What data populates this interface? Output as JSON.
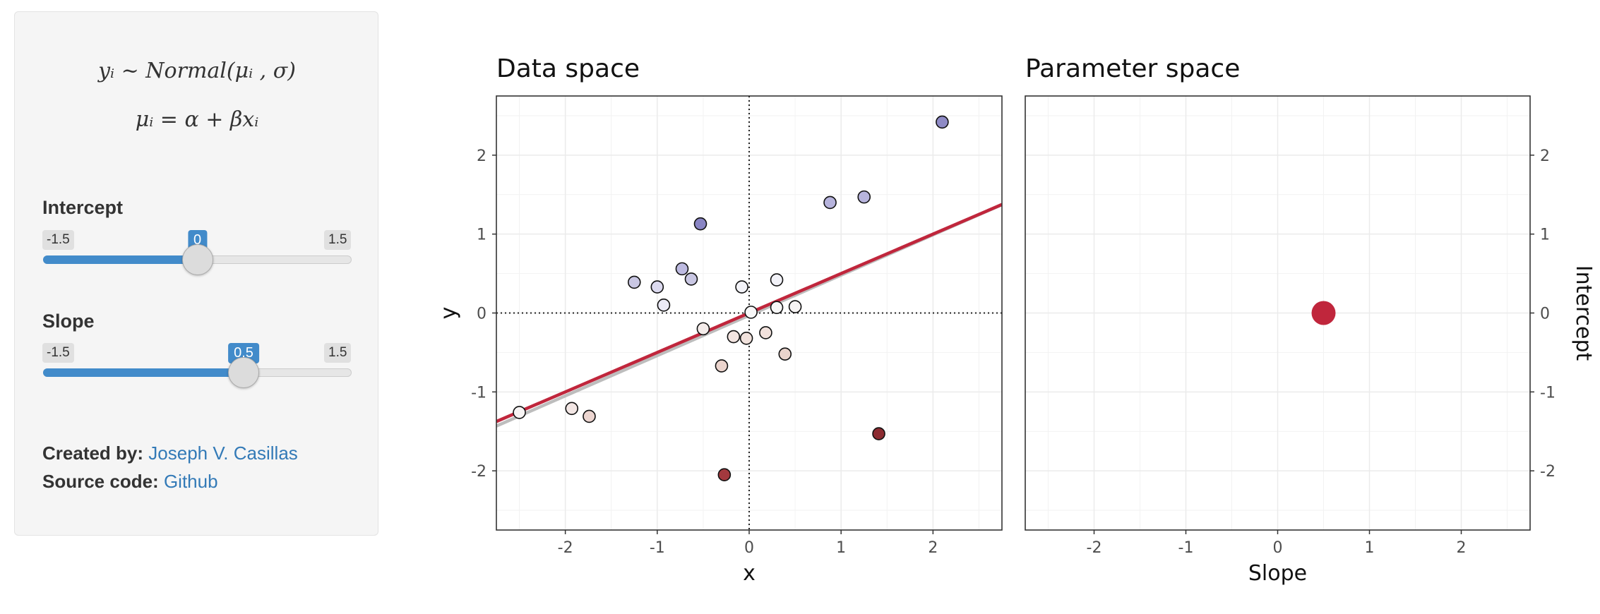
{
  "sidebar": {
    "formula_line1": "yᵢ ~ Normal(μᵢ , σ)",
    "formula_line2": "μᵢ = α + βxᵢ",
    "intercept": {
      "label": "Intercept",
      "min": "-1.5",
      "max": "1.5",
      "value": "0",
      "min_value": -1.5,
      "max_value": 1.5,
      "current": 0
    },
    "slope": {
      "label": "Slope",
      "min": "-1.5",
      "max": "1.5",
      "value": "0.5",
      "min_value": -1.5,
      "max_value": 1.5,
      "current": 0.5
    },
    "created_by_label": "Created by:",
    "created_by_link": "Joseph V. Casillas",
    "source_code_label": "Source code:",
    "source_code_link": "Github"
  },
  "chart_data": [
    {
      "type": "scatter",
      "title": "Data space",
      "xlabel": "x",
      "ylabel": "y",
      "xlim": [
        -2.75,
        2.75
      ],
      "ylim": [
        -2.75,
        2.75
      ],
      "x_ticks": [
        "-2",
        "-1",
        "0",
        "1",
        "2"
      ],
      "y_ticks": [
        "-2",
        "-1",
        "0",
        "1",
        "2"
      ],
      "grid": true,
      "points": [
        {
          "x": -2.5,
          "y": -1.26,
          "color": "#f7f4f4"
        },
        {
          "x": -1.93,
          "y": -1.21,
          "color": "#f2e6e4"
        },
        {
          "x": -1.74,
          "y": -1.31,
          "color": "#ecd5d0"
        },
        {
          "x": -1.25,
          "y": 0.39,
          "color": "#c9c7e3"
        },
        {
          "x": -1.0,
          "y": 0.33,
          "color": "#dcdaef"
        },
        {
          "x": -0.93,
          "y": 0.1,
          "color": "#ebeaf6"
        },
        {
          "x": -0.73,
          "y": 0.56,
          "color": "#bdbae0"
        },
        {
          "x": -0.63,
          "y": 0.43,
          "color": "#c9c7e3"
        },
        {
          "x": -0.53,
          "y": 1.13,
          "color": "#8985c4"
        },
        {
          "x": -0.5,
          "y": -0.2,
          "color": "#f4ecea"
        },
        {
          "x": -0.3,
          "y": -0.67,
          "color": "#ebd4cd"
        },
        {
          "x": -0.27,
          "y": -2.05,
          "color": "#a3393e"
        },
        {
          "x": -0.17,
          "y": -0.3,
          "color": "#f3e5e1"
        },
        {
          "x": -0.08,
          "y": 0.33,
          "color": "#f3f3f8"
        },
        {
          "x": -0.03,
          "y": -0.32,
          "color": "#f1e2dd"
        },
        {
          "x": 0.02,
          "y": 0.01,
          "color": "#f7f7f7"
        },
        {
          "x": 0.18,
          "y": -0.25,
          "color": "#f1e1dc"
        },
        {
          "x": 0.3,
          "y": 0.07,
          "color": "#f7f7f7"
        },
        {
          "x": 0.3,
          "y": 0.42,
          "color": "#f2f2f8"
        },
        {
          "x": 0.39,
          "y": -0.52,
          "color": "#ebd4cc"
        },
        {
          "x": 0.5,
          "y": 0.08,
          "color": "#f7f4f4"
        },
        {
          "x": 0.88,
          "y": 1.4,
          "color": "#b6b3dc"
        },
        {
          "x": 1.25,
          "y": 1.47,
          "color": "#b8b5dd"
        },
        {
          "x": 1.41,
          "y": -1.53,
          "color": "#8c2b31"
        },
        {
          "x": 2.1,
          "y": 2.42,
          "color": "#8f8bc6"
        }
      ],
      "lines": [
        {
          "intercept": -0.03,
          "slope": 0.51,
          "color": "#bdbdbd"
        },
        {
          "intercept": 0,
          "slope": 0.5,
          "color": "#c0263c"
        }
      ]
    },
    {
      "type": "scatter",
      "title": "Parameter space",
      "xlabel": "Slope",
      "ylabel": "Intercept",
      "xlim": [
        -2.75,
        2.75
      ],
      "ylim": [
        -2.75,
        2.75
      ],
      "x_ticks": [
        "-2",
        "-1",
        "0",
        "1",
        "2"
      ],
      "y_ticks": [
        "-2",
        "-1",
        "0",
        "1",
        "2"
      ],
      "grid": true,
      "points": [
        {
          "x": 0.5,
          "y": 0,
          "color": "#c0263c"
        }
      ]
    }
  ]
}
